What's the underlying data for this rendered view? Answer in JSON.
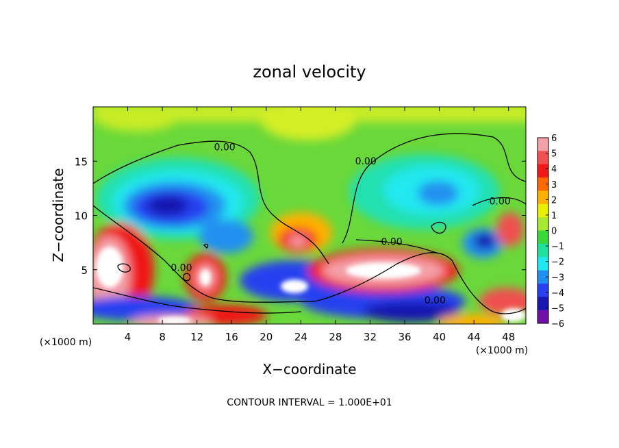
{
  "chart_data": {
    "type": "heatmap",
    "title": "zonal velocity",
    "xlabel": "X−coordinate",
    "ylabel": "Z−coordinate",
    "x_unit_left": "(×1000 m)",
    "x_unit_right": "(×1000 m)",
    "footer": "CONTOUR INTERVAL = 1.000E+01",
    "xlim": [
      0,
      50
    ],
    "ylim": [
      0,
      20
    ],
    "x_ticks": [
      4,
      8,
      12,
      16,
      20,
      24,
      28,
      32,
      36,
      40,
      44,
      48
    ],
    "y_ticks": [
      5,
      10,
      15
    ],
    "colorbar": {
      "range": [
        -6,
        6
      ],
      "ticks": [
        6,
        5,
        4,
        3,
        2,
        1,
        0,
        -1,
        -2,
        -3,
        -4,
        -5,
        -6
      ],
      "tick_labels": [
        "6",
        "5",
        "4",
        "3",
        "2",
        "1",
        "0",
        "−1",
        "−2",
        "−3",
        "−4",
        "−5",
        "−6"
      ],
      "colors": [
        "#f4a0a8",
        "#f05050",
        "#f01818",
        "#ff6a00",
        "#ffb000",
        "#e8f000",
        "#a8e830",
        "#38d838",
        "#20e0a0",
        "#20e8f0",
        "#2090f0",
        "#2840f0",
        "#1818b0",
        "#7010a8"
      ]
    },
    "contour_labels": [
      {
        "text": "0.00",
        "x": 15.2,
        "z": 16.0
      },
      {
        "text": "0.00",
        "x": 31.5,
        "z": 14.7
      },
      {
        "text": "0.00",
        "x": 47.0,
        "z": 11.0
      },
      {
        "text": "0.00",
        "x": 34.5,
        "z": 7.3
      },
      {
        "text": "0.00",
        "x": 39.5,
        "z": 1.9
      },
      {
        "text": "0.00",
        "x": 10.2,
        "z": 4.9
      }
    ]
  }
}
